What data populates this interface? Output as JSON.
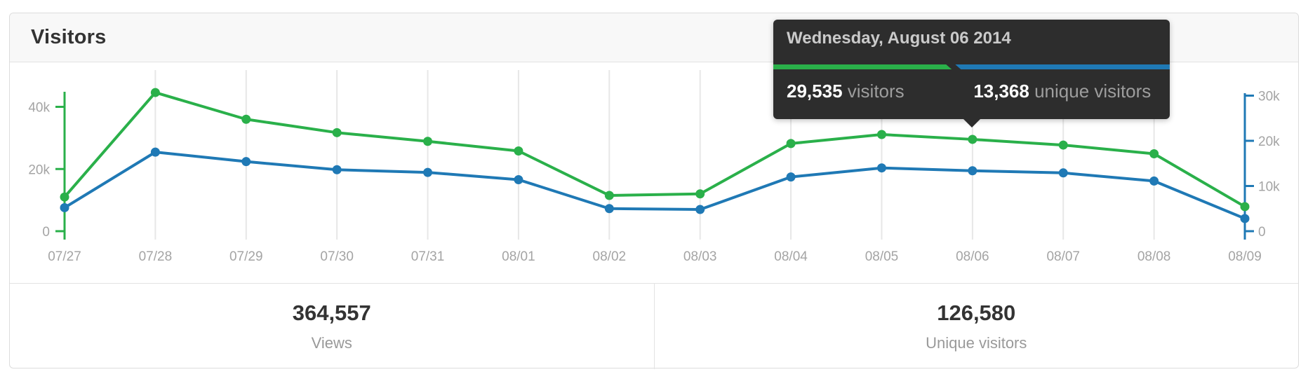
{
  "panel": {
    "title": "Visitors"
  },
  "tooltip": {
    "date": "Wednesday, August 06 2014",
    "visitors": {
      "value": "29,535",
      "label": "visitors"
    },
    "unique": {
      "value": "13,368",
      "label": "unique visitors"
    }
  },
  "summary": {
    "views": {
      "value": "364,557",
      "label": "Views"
    },
    "unique": {
      "value": "126,580",
      "label": "Unique visitors"
    }
  },
  "colors": {
    "green": "#2ab04a",
    "blue": "#1f79b5",
    "grid": "#e7e7e7",
    "tick_label": "#a4a4a4",
    "tooltip_bg": "#2d2d2d"
  },
  "chart_data": {
    "type": "line",
    "title": "Visitors",
    "x": [
      "07/27",
      "07/28",
      "07/29",
      "07/30",
      "07/31",
      "08/01",
      "08/02",
      "08/03",
      "08/04",
      "08/05",
      "08/06",
      "08/07",
      "08/08",
      "08/09"
    ],
    "series": [
      {
        "name": "visitors",
        "axis": "left",
        "color": "#2ab04a",
        "values": [
          11000,
          44600,
          36000,
          31700,
          28900,
          25800,
          11500,
          12000,
          28200,
          31100,
          29535,
          27700,
          24900,
          7900
        ]
      },
      {
        "name": "unique visitors",
        "axis": "right",
        "color": "#1f79b5",
        "values": [
          5200,
          17500,
          15400,
          13600,
          13000,
          11400,
          5000,
          4800,
          12000,
          14000,
          13368,
          12900,
          11100,
          2800
        ]
      }
    ],
    "left_axis": {
      "color": "#2ab04a",
      "range": [
        0,
        45000
      ],
      "ticks": [
        {
          "label": "0",
          "value": 0
        },
        {
          "label": "20k",
          "value": 20000
        },
        {
          "label": "40k",
          "value": 40000
        }
      ]
    },
    "right_axis": {
      "color": "#1f79b5",
      "range": [
        0,
        30500
      ],
      "ticks": [
        {
          "label": "0",
          "value": 0
        },
        {
          "label": "10k",
          "value": 10000
        },
        {
          "label": "20k",
          "value": 20000
        },
        {
          "label": "30k",
          "value": 30000
        }
      ]
    },
    "grid": "vertical",
    "legend": "none",
    "highlight_index": 10
  }
}
